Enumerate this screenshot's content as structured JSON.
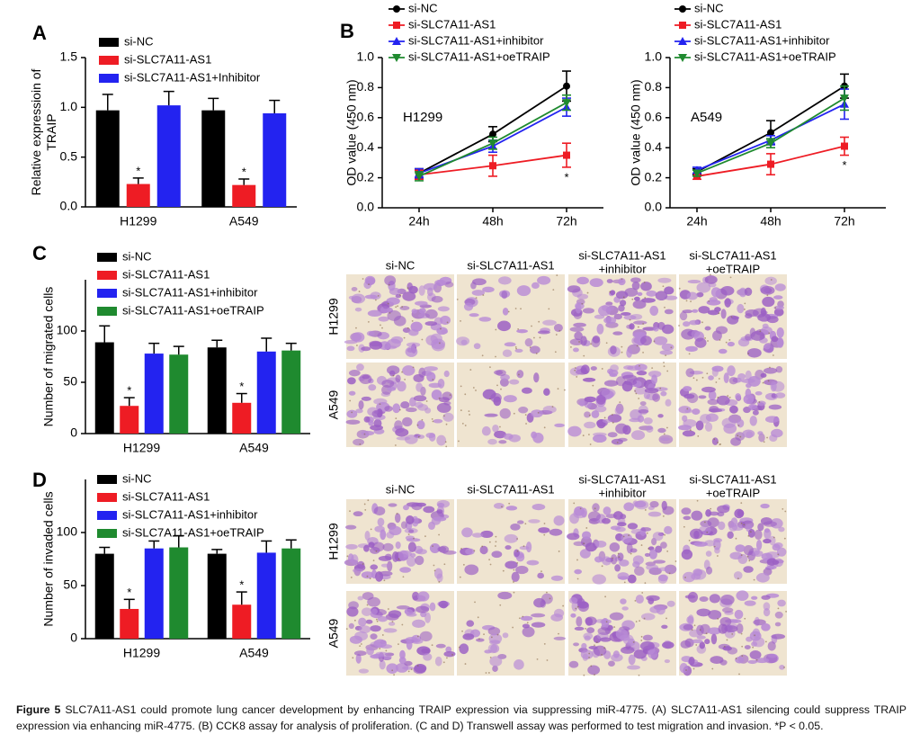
{
  "chart_data": [
    {
      "type": "bar",
      "panel": "A",
      "ylabel": [
        "Relative expressioin of",
        "TRAIP"
      ],
      "categories": [
        "H1299",
        "A549"
      ],
      "ylim": [
        0,
        1.5
      ],
      "yticks": [
        {
          "value": 0,
          "label": "0.0"
        },
        0.5,
        {
          "value": 1,
          "label": "1.0"
        },
        {
          "value": 1.5,
          "label": "1.5"
        }
      ],
      "legend": "upper left",
      "series": [
        {
          "name": "si-NC",
          "color": "#000000",
          "values": [
            0.97,
            0.97
          ],
          "errors": [
            0.16,
            0.12
          ]
        },
        {
          "name": "si-SLC7A11-AS1",
          "color": "#ee1c24",
          "values": [
            0.23,
            0.22
          ],
          "errors": [
            0.06,
            0.06
          ],
          "annotations": [
            "*",
            "*"
          ]
        },
        {
          "name": "si-SLC7A11-AS1+Inhibitor",
          "color": "#2323f0",
          "values": [
            1.02,
            0.94
          ],
          "errors": [
            0.14,
            0.13
          ]
        }
      ]
    },
    {
      "type": "line",
      "panel": "B",
      "annotation": "H1299",
      "ylabel": [
        "OD value (450 nm)"
      ],
      "categories": [
        "24h",
        "48h",
        "72h"
      ],
      "ylim": [
        0,
        1.0
      ],
      "yticks": [
        {
          "value": 0,
          "label": "0.0"
        },
        0.2,
        0.4,
        0.6,
        0.8,
        {
          "value": 1,
          "label": "1.0"
        }
      ],
      "legend": "upper left",
      "series": [
        {
          "name": "si-NC",
          "color": "#000000",
          "marker": "circle",
          "values": [
            0.23,
            0.49,
            0.81
          ],
          "errors": [
            0.03,
            0.05,
            0.1
          ]
        },
        {
          "name": "si-SLC7A11-AS1",
          "color": "#ee1c24",
          "marker": "square",
          "values": [
            0.22,
            0.28,
            0.35
          ],
          "errors": [
            0.03,
            0.07,
            0.08
          ],
          "annotations": [
            null,
            null,
            "*"
          ]
        },
        {
          "name": "si-SLC7A11-AS1+inhibitor",
          "color": "#2323f0",
          "marker": "triangle-up",
          "values": [
            0.23,
            0.41,
            0.67
          ],
          "errors": [
            0.03,
            0.04,
            0.06
          ]
        },
        {
          "name": "si-SLC7A11-AS1+oeTRAIP",
          "color": "#1f8a2f",
          "marker": "triangle-down",
          "values": [
            0.21,
            0.43,
            0.7
          ],
          "errors": [
            0.03,
            0.04,
            0.05
          ]
        }
      ]
    },
    {
      "type": "line",
      "annotation": "A549",
      "ylabel": [
        "OD value (450 nm)"
      ],
      "categories": [
        "24h",
        "48h",
        "72h"
      ],
      "ylim": [
        0,
        1.0
      ],
      "yticks": [
        {
          "value": 0,
          "label": "0.0"
        },
        0.2,
        0.4,
        0.6,
        0.8,
        {
          "value": 1,
          "label": "1.0"
        }
      ],
      "legend": "upper left",
      "series": [
        {
          "name": "si-NC",
          "color": "#000000",
          "marker": "circle",
          "values": [
            0.24,
            0.5,
            0.81
          ],
          "errors": [
            0.02,
            0.08,
            0.08
          ]
        },
        {
          "name": "si-SLC7A11-AS1",
          "color": "#ee1c24",
          "marker": "square",
          "values": [
            0.21,
            0.29,
            0.41
          ],
          "errors": [
            0.02,
            0.07,
            0.06
          ],
          "annotations": [
            null,
            null,
            "*"
          ]
        },
        {
          "name": "si-SLC7A11-AS1+inhibitor",
          "color": "#2323f0",
          "marker": "triangle-up",
          "values": [
            0.25,
            0.45,
            0.69
          ],
          "errors": [
            0.02,
            0.03,
            0.1
          ]
        },
        {
          "name": "si-SLC7A11-AS1+oeTRAIP",
          "color": "#1f8a2f",
          "marker": "triangle-down",
          "values": [
            0.23,
            0.43,
            0.73
          ],
          "errors": [
            0.02,
            0.03,
            0.08
          ]
        }
      ]
    },
    {
      "type": "bar",
      "panel": "C",
      "ylabel": [
        "Number of migrated cells"
      ],
      "categories": [
        "H1299",
        "A549"
      ],
      "ylim": [
        0,
        150
      ],
      "yticks": [
        0,
        50,
        100
      ],
      "legend": "upper left",
      "series": [
        {
          "name": "si-NC",
          "color": "#000000",
          "values": [
            89,
            84
          ],
          "errors": [
            16,
            7
          ]
        },
        {
          "name": "si-SLC7A11-AS1",
          "color": "#ee1c24",
          "values": [
            27,
            30
          ],
          "errors": [
            8,
            9
          ],
          "annotations": [
            "*",
            "*"
          ]
        },
        {
          "name": "si-SLC7A11-AS1+inhibitor",
          "color": "#2323f0",
          "values": [
            78,
            80
          ],
          "errors": [
            10,
            13
          ]
        },
        {
          "name": "si-SLC7A11-AS1+oeTRAIP",
          "color": "#1f8a2f",
          "values": [
            77,
            81
          ],
          "errors": [
            8,
            7
          ]
        }
      ]
    },
    {
      "type": "bar",
      "panel": "D",
      "ylabel": [
        "Number of invaded cells"
      ],
      "categories": [
        "H1299",
        "A549"
      ],
      "ylim": [
        0,
        150
      ],
      "yticks": [
        0,
        50,
        100
      ],
      "legend": "upper left",
      "series": [
        {
          "name": "si-NC",
          "color": "#000000",
          "values": [
            80,
            80
          ],
          "errors": [
            6,
            4
          ]
        },
        {
          "name": "si-SLC7A11-AS1",
          "color": "#ee1c24",
          "values": [
            28,
            32
          ],
          "errors": [
            9,
            12
          ],
          "annotations": [
            "*",
            "*"
          ]
        },
        {
          "name": "si-SLC7A11-AS1+inhibitor",
          "color": "#2323f0",
          "values": [
            85,
            81
          ],
          "errors": [
            7,
            11
          ]
        },
        {
          "name": "si-SLC7A11-AS1+oeTRAIP",
          "color": "#1f8a2f",
          "values": [
            86,
            85
          ],
          "errors": [
            11,
            8
          ]
        }
      ]
    }
  ],
  "micrographs": [
    {
      "columns": [
        [
          "si-NC"
        ],
        [
          "si-SLC7A11-AS1"
        ],
        [
          "si-SLC7A11-AS1",
          "+inhibitor"
        ],
        [
          "si-SLC7A11-AS1",
          "+oeTRAIP"
        ]
      ],
      "rows": [
        "H1299",
        "A549"
      ]
    },
    {
      "columns": [
        [
          "si-NC"
        ],
        [
          "si-SLC7A11-AS1"
        ],
        [
          "si-SLC7A11-AS1",
          "+inhibitor"
        ],
        [
          "si-SLC7A11-AS1",
          "+oeTRAIP"
        ]
      ],
      "rows": [
        "H1299",
        "A549"
      ]
    }
  ],
  "caption": {
    "label": "Figure 5",
    "text": "SLC7A11-AS1 could promote lung cancer development by enhancing TRAIP expression via suppressing miR-4775. (A) SLC7A11-AS1 silencing could suppress TRAIP expression via enhancing miR-4775. (B) CCK8 assay for analysis of proliferation. (C and D) Transwell assay was performed to test migration and invasion. *P < 0.05."
  }
}
